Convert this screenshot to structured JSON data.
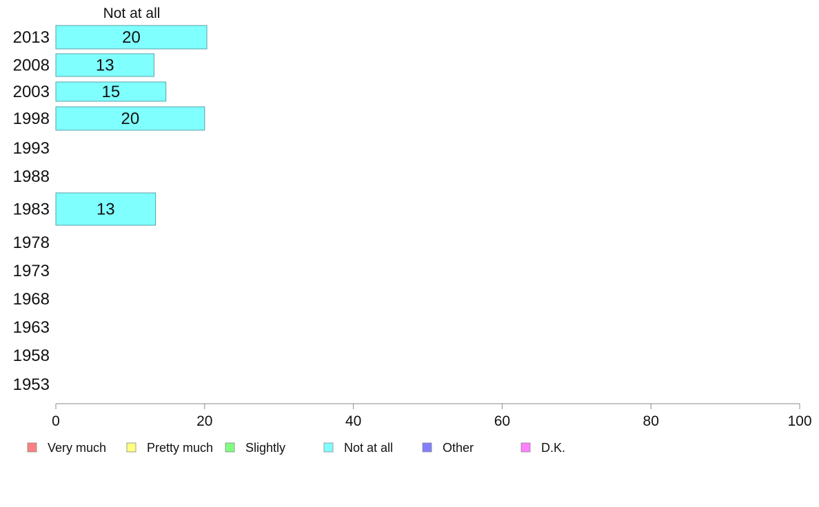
{
  "chart_data": {
    "type": "bar",
    "orientation": "horizontal",
    "column_title": "Not at all",
    "categories": [
      "2013",
      "2008",
      "2003",
      "1998",
      "1993",
      "1988",
      "1983",
      "1978",
      "1973",
      "1968",
      "1963",
      "1958",
      "1953"
    ],
    "series": [
      {
        "name": "Not at all",
        "color": "#80ffff",
        "values": [
          20.3,
          13.2,
          14.8,
          20.0,
          null,
          null,
          13.4,
          null,
          null,
          null,
          null,
          null,
          null
        ],
        "labels": [
          "20",
          "13",
          "15",
          "20",
          "",
          "",
          "13",
          "",
          "",
          "",
          "",
          "",
          ""
        ]
      }
    ],
    "xlim": [
      0,
      100
    ],
    "xticks": [
      "0",
      "20",
      "40",
      "60",
      "80",
      "100"
    ],
    "grid": false,
    "legend_position": "bottom",
    "legend": [
      {
        "label": "Very much",
        "color": "#ff8080"
      },
      {
        "label": "Pretty much",
        "color": "#ffff80"
      },
      {
        "label": "Slightly",
        "color": "#80ff80"
      },
      {
        "label": "Not at all",
        "color": "#80ffff"
      },
      {
        "label": "Other",
        "color": "#8080ff"
      },
      {
        "label": "D.K.",
        "color": "#ff80ff"
      }
    ]
  }
}
